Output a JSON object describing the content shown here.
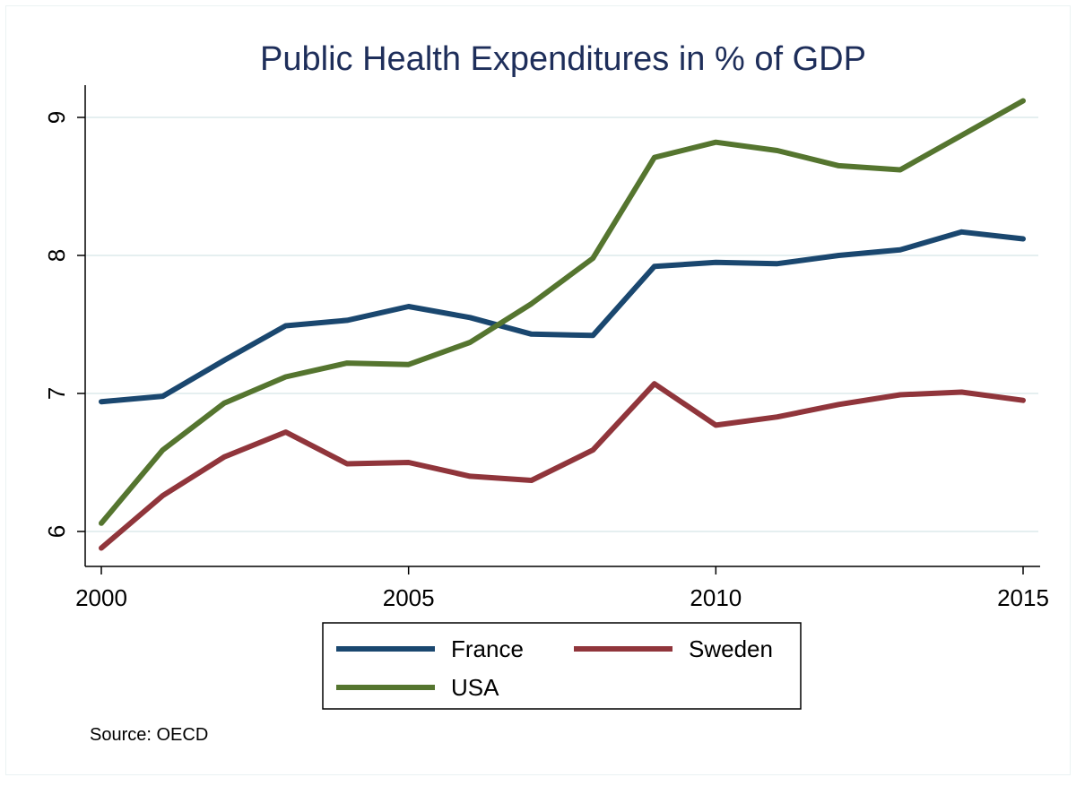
{
  "chart_data": {
    "type": "line",
    "title": "Public Health Expenditures in % of GDP",
    "xlabel": "",
    "ylabel": "",
    "x": [
      2000,
      2001,
      2002,
      2003,
      2004,
      2005,
      2006,
      2007,
      2008,
      2009,
      2010,
      2011,
      2012,
      2013,
      2014,
      2015
    ],
    "xlim": [
      2000,
      2015
    ],
    "ylim": [
      6,
      9
    ],
    "x_ticks": [
      2000,
      2005,
      2010,
      2015
    ],
    "y_ticks": [
      6,
      7,
      8,
      9
    ],
    "grid": "horizontal",
    "legend_position": "bottom",
    "note": "Source: OECD",
    "series": [
      {
        "name": "France",
        "color": "#1a476f",
        "values": [
          6.94,
          6.98,
          7.24,
          7.49,
          7.53,
          7.63,
          7.55,
          7.43,
          7.42,
          7.92,
          7.95,
          7.94,
          8.0,
          8.04,
          8.17,
          8.12
        ]
      },
      {
        "name": "Sweden",
        "color": "#90353b",
        "values": [
          5.88,
          6.26,
          6.54,
          6.72,
          6.49,
          6.5,
          6.4,
          6.37,
          6.59,
          7.07,
          6.77,
          6.83,
          6.92,
          6.99,
          7.01,
          6.95
        ]
      },
      {
        "name": "USA",
        "color": "#55752f",
        "values": [
          6.06,
          6.59,
          6.93,
          7.12,
          7.22,
          7.21,
          7.37,
          7.65,
          7.98,
          8.71,
          8.82,
          8.76,
          8.65,
          8.62,
          8.87,
          9.12
        ]
      }
    ]
  }
}
